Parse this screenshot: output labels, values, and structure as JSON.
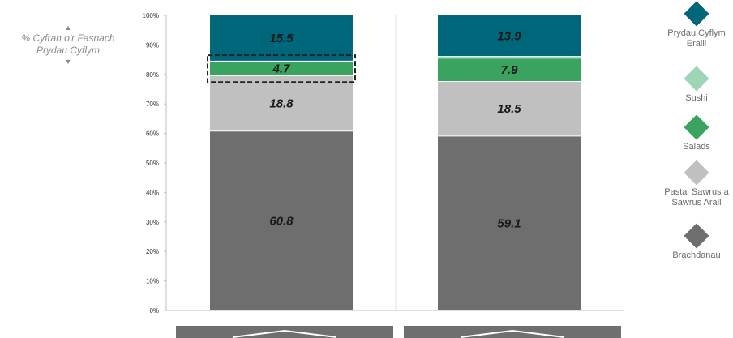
{
  "y_axis_label": {
    "line1": "% Cyfran o'r Fasnach",
    "line2": "Prydau Cyflym",
    "up_arrow": "▲",
    "down_arrow": "▼"
  },
  "colors": {
    "brachdanau": "#6e6e6e",
    "pastai": "#c0c0c0",
    "salads": "#3aa35f",
    "sushi": "#9ed6b5",
    "prydau": "#00667a",
    "highlight_border": "#222222"
  },
  "legend": [
    {
      "key": "prydau",
      "label_lines": [
        "Prydau Cyflym",
        "Eraill"
      ],
      "color": "#00667a"
    },
    {
      "key": "sushi",
      "label_lines": [
        "Sushi"
      ],
      "color": "#9ed6b5"
    },
    {
      "key": "salads",
      "label_lines": [
        "Salads"
      ],
      "color": "#3aa35f"
    },
    {
      "key": "pastai",
      "label_lines": [
        "Pastai Sawrus a",
        "Sawrus Arall"
      ],
      "color": "#c0c0c0"
    },
    {
      "key": "brachdanau",
      "label_lines": [
        "Brachdanau"
      ],
      "color": "#6e6e6e"
    }
  ],
  "chart_data": {
    "type": "bar",
    "stacked": true,
    "categories": [
      "",
      ""
    ],
    "ylim": [
      0,
      100
    ],
    "yticks": [
      "0%",
      "10%",
      "20%",
      "30%",
      "40%",
      "50%",
      "60%",
      "70%",
      "80%",
      "90%",
      "100%"
    ],
    "grid": false,
    "legend_position": "right",
    "series": [
      {
        "name": "Brachdanau",
        "key": "brachdanau",
        "values": [
          60.8,
          59.1
        ],
        "labels": [
          "60.8",
          "59.1"
        ]
      },
      {
        "name": "Pastai Sawrus a Sawrus Arall",
        "key": "pastai",
        "values": [
          18.8,
          18.5
        ],
        "labels": [
          "18.8",
          "18.5"
        ]
      },
      {
        "name": "Salads",
        "key": "salads",
        "values": [
          4.7,
          7.9
        ],
        "labels": [
          "4.7",
          "7.9"
        ]
      },
      {
        "name": "Sushi",
        "key": "sushi",
        "values": [
          0.2,
          0.6
        ],
        "labels": [
          "",
          ""
        ]
      },
      {
        "name": "Prydau Cyflym Eraill",
        "key": "prydau",
        "values": [
          15.5,
          13.9
        ],
        "labels": [
          "15.5",
          "13.9"
        ]
      }
    ],
    "highlighted": {
      "category_index": 0,
      "series_key": "salads"
    }
  }
}
